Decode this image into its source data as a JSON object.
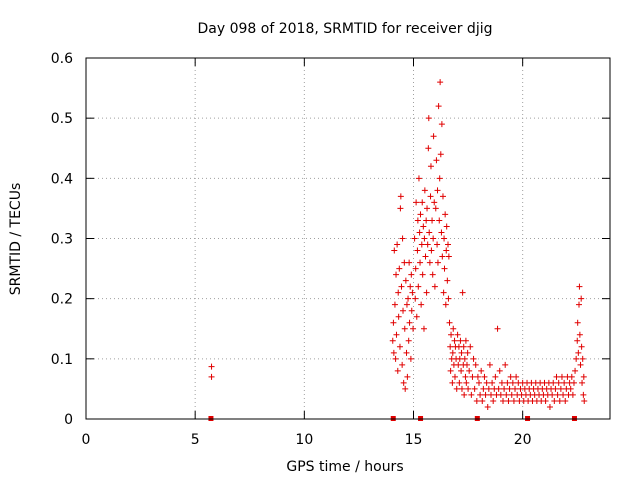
{
  "chart_data": {
    "type": "scatter",
    "title": "Day 098 of 2018, SRMTID for receiver djig",
    "xlabel": "GPS time / hours",
    "ylabel": "SRMTID / TECUs",
    "xlim": [
      0,
      24
    ],
    "ylim": [
      0,
      0.6
    ],
    "xticks": [
      0,
      5,
      10,
      15,
      20
    ],
    "xtick_labels": [
      "0",
      "5",
      "10",
      "15",
      "20"
    ],
    "yticks": [
      0,
      0.1,
      0.2,
      0.3,
      0.4,
      0.5,
      0.6
    ],
    "ytick_labels": [
      "0",
      "0.1",
      "0.2",
      "0.3",
      "0.4",
      "0.5",
      "0.6"
    ],
    "grid": true,
    "marker": "+",
    "color": "#e00000",
    "series": [
      {
        "name": "SRMTID",
        "points": [
          [
            5.75,
            0.087
          ],
          [
            5.75,
            0.07
          ],
          [
            14.05,
            0.13
          ],
          [
            14.08,
            0.16
          ],
          [
            14.1,
            0.11
          ],
          [
            14.12,
            0.28
          ],
          [
            14.15,
            0.19
          ],
          [
            14.18,
            0.1
          ],
          [
            14.2,
            0.24
          ],
          [
            14.22,
            0.14
          ],
          [
            14.25,
            0.29
          ],
          [
            14.28,
            0.08
          ],
          [
            14.3,
            0.21
          ],
          [
            14.32,
            0.17
          ],
          [
            14.35,
            0.25
          ],
          [
            14.38,
            0.12
          ],
          [
            14.4,
            0.35
          ],
          [
            14.42,
            0.37
          ],
          [
            14.45,
            0.22
          ],
          [
            14.48,
            0.09
          ],
          [
            14.5,
            0.3
          ],
          [
            14.52,
            0.18
          ],
          [
            14.55,
            0.06
          ],
          [
            14.58,
            0.26
          ],
          [
            14.6,
            0.15
          ],
          [
            14.62,
            0.05
          ],
          [
            14.65,
            0.23
          ],
          [
            14.68,
            0.11
          ],
          [
            14.7,
            0.19
          ],
          [
            14.72,
            0.07
          ],
          [
            14.75,
            0.2
          ],
          [
            14.78,
            0.13
          ],
          [
            14.8,
            0.26
          ],
          [
            14.82,
            0.16
          ],
          [
            14.85,
            0.22
          ],
          [
            14.88,
            0.1
          ],
          [
            14.9,
            0.24
          ],
          [
            14.92,
            0.18
          ],
          [
            14.95,
            0.21
          ],
          [
            14.98,
            0.15
          ],
          [
            15.05,
            0.3
          ],
          [
            15.08,
            0.2
          ],
          [
            15.1,
            0.25
          ],
          [
            15.12,
            0.36
          ],
          [
            15.15,
            0.17
          ],
          [
            15.18,
            0.28
          ],
          [
            15.2,
            0.33
          ],
          [
            15.22,
            0.22
          ],
          [
            15.25,
            0.4
          ],
          [
            15.28,
            0.31
          ],
          [
            15.3,
            0.26
          ],
          [
            15.32,
            0.34
          ],
          [
            15.35,
            0.19
          ],
          [
            15.38,
            0.29
          ],
          [
            15.4,
            0.36
          ],
          [
            15.42,
            0.24
          ],
          [
            15.45,
            0.32
          ],
          [
            15.48,
            0.15
          ],
          [
            15.5,
            0.3
          ],
          [
            15.52,
            0.38
          ],
          [
            15.55,
            0.27
          ],
          [
            15.58,
            0.33
          ],
          [
            15.6,
            0.21
          ],
          [
            15.62,
            0.35
          ],
          [
            15.65,
            0.29
          ],
          [
            15.68,
            0.45
          ],
          [
            15.7,
            0.5
          ],
          [
            15.72,
            0.31
          ],
          [
            15.75,
            0.26
          ],
          [
            15.78,
            0.37
          ],
          [
            15.8,
            0.42
          ],
          [
            15.82,
            0.28
          ],
          [
            15.85,
            0.33
          ],
          [
            15.88,
            0.24
          ],
          [
            15.9,
            0.3
          ],
          [
            15.92,
            0.47
          ],
          [
            15.95,
            0.36
          ],
          [
            15.98,
            0.22
          ],
          [
            16.02,
            0.35
          ],
          [
            16.05,
            0.43
          ],
          [
            16.08,
            0.29
          ],
          [
            16.1,
            0.38
          ],
          [
            16.12,
            0.26
          ],
          [
            16.15,
            0.52
          ],
          [
            16.18,
            0.33
          ],
          [
            16.2,
            0.4
          ],
          [
            16.22,
            0.56
          ],
          [
            16.25,
            0.44
          ],
          [
            16.28,
            0.31
          ],
          [
            16.3,
            0.49
          ],
          [
            16.32,
            0.27
          ],
          [
            16.35,
            0.37
          ],
          [
            16.38,
            0.21
          ],
          [
            16.4,
            0.3
          ],
          [
            16.42,
            0.25
          ],
          [
            16.45,
            0.34
          ],
          [
            16.48,
            0.19
          ],
          [
            16.5,
            0.28
          ],
          [
            16.52,
            0.32
          ],
          [
            16.55,
            0.23
          ],
          [
            16.58,
            0.29
          ],
          [
            16.6,
            0.2
          ],
          [
            16.62,
            0.27
          ],
          [
            16.65,
            0.16
          ],
          [
            16.68,
            0.12
          ],
          [
            16.7,
            0.08
          ],
          [
            16.72,
            0.14
          ],
          [
            16.75,
            0.1
          ],
          [
            16.78,
            0.06
          ],
          [
            16.8,
            0.11
          ],
          [
            16.82,
            0.15
          ],
          [
            16.85,
            0.09
          ],
          [
            16.88,
            0.13
          ],
          [
            16.9,
            0.07
          ],
          [
            16.92,
            0.12
          ],
          [
            16.95,
            0.1
          ],
          [
            16.98,
            0.05
          ],
          [
            17.02,
            0.14
          ],
          [
            17.05,
            0.09
          ],
          [
            17.08,
            0.12
          ],
          [
            17.1,
            0.06
          ],
          [
            17.12,
            0.1
          ],
          [
            17.15,
            0.13
          ],
          [
            17.18,
            0.08
          ],
          [
            17.2,
            0.11
          ],
          [
            17.22,
            0.05
          ],
          [
            17.25,
            0.21
          ],
          [
            17.28,
            0.09
          ],
          [
            17.3,
            0.12
          ],
          [
            17.32,
            0.04
          ],
          [
            17.35,
            0.1
          ],
          [
            17.38,
            0.07
          ],
          [
            17.4,
            0.13
          ],
          [
            17.42,
            0.06
          ],
          [
            17.45,
            0.09
          ],
          [
            17.48,
            0.11
          ],
          [
            17.5,
            0.05
          ],
          [
            17.55,
            0.08
          ],
          [
            17.6,
            0.12
          ],
          [
            17.65,
            0.04
          ],
          [
            17.7,
            0.07
          ],
          [
            17.75,
            0.1
          ],
          [
            17.8,
            0.05
          ],
          [
            17.85,
            0.09
          ],
          [
            17.9,
            0.03
          ],
          [
            17.95,
            0.07
          ],
          [
            18.0,
            0.06
          ],
          [
            18.05,
            0.04
          ],
          [
            18.1,
            0.08
          ],
          [
            18.15,
            0.03
          ],
          [
            18.2,
            0.05
          ],
          [
            18.25,
            0.07
          ],
          [
            18.3,
            0.04
          ],
          [
            18.35,
            0.06
          ],
          [
            18.4,
            0.02
          ],
          [
            18.45,
            0.05
          ],
          [
            18.5,
            0.09
          ],
          [
            18.55,
            0.04
          ],
          [
            18.6,
            0.06
          ],
          [
            18.65,
            0.03
          ],
          [
            18.7,
            0.05
          ],
          [
            18.75,
            0.07
          ],
          [
            18.8,
            0.04
          ],
          [
            18.85,
            0.15
          ],
          [
            18.9,
            0.05
          ],
          [
            18.95,
            0.08
          ],
          [
            19.0,
            0.04
          ],
          [
            19.05,
            0.06
          ],
          [
            19.1,
            0.03
          ],
          [
            19.15,
            0.05
          ],
          [
            19.2,
            0.09
          ],
          [
            19.25,
            0.04
          ],
          [
            19.3,
            0.06
          ],
          [
            19.35,
            0.03
          ],
          [
            19.4,
            0.05
          ],
          [
            19.45,
            0.07
          ],
          [
            19.5,
            0.04
          ],
          [
            19.55,
            0.06
          ],
          [
            19.6,
            0.03
          ],
          [
            19.65,
            0.05
          ],
          [
            19.7,
            0.07
          ],
          [
            19.75,
            0.04
          ],
          [
            19.8,
            0.06
          ],
          [
            19.85,
            0.03
          ],
          [
            19.9,
            0.05
          ],
          [
            19.95,
            0.04
          ],
          [
            20.0,
            0.06
          ],
          [
            20.05,
            0.03
          ],
          [
            20.1,
            0.05
          ],
          [
            20.15,
            0.04
          ],
          [
            20.2,
            0.06
          ],
          [
            20.25,
            0.03
          ],
          [
            20.3,
            0.05
          ],
          [
            20.35,
            0.04
          ],
          [
            20.4,
            0.06
          ],
          [
            20.45,
            0.03
          ],
          [
            20.5,
            0.05
          ],
          [
            20.55,
            0.04
          ],
          [
            20.6,
            0.06
          ],
          [
            20.65,
            0.03
          ],
          [
            20.7,
            0.05
          ],
          [
            20.75,
            0.04
          ],
          [
            20.8,
            0.06
          ],
          [
            20.85,
            0.03
          ],
          [
            20.9,
            0.05
          ],
          [
            20.95,
            0.04
          ],
          [
            21.0,
            0.06
          ],
          [
            21.05,
            0.03
          ],
          [
            21.1,
            0.05
          ],
          [
            21.15,
            0.04
          ],
          [
            21.2,
            0.06
          ],
          [
            21.25,
            0.02
          ],
          [
            21.3,
            0.05
          ],
          [
            21.35,
            0.04
          ],
          [
            21.4,
            0.06
          ],
          [
            21.45,
            0.03
          ],
          [
            21.5,
            0.05
          ],
          [
            21.55,
            0.07
          ],
          [
            21.6,
            0.04
          ],
          [
            21.65,
            0.06
          ],
          [
            21.7,
            0.03
          ],
          [
            21.75,
            0.05
          ],
          [
            21.8,
            0.07
          ],
          [
            21.85,
            0.04
          ],
          [
            21.9,
            0.06
          ],
          [
            21.95,
            0.03
          ],
          [
            22.0,
            0.05
          ],
          [
            22.05,
            0.07
          ],
          [
            22.1,
            0.04
          ],
          [
            22.15,
            0.06
          ],
          [
            22.2,
            0.05
          ],
          [
            22.25,
            0.07
          ],
          [
            22.3,
            0.04
          ],
          [
            22.35,
            0.06
          ],
          [
            22.4,
            0.08
          ],
          [
            22.45,
            0.1
          ],
          [
            22.5,
            0.13
          ],
          [
            22.52,
            0.16
          ],
          [
            22.55,
            0.11
          ],
          [
            22.58,
            0.19
          ],
          [
            22.6,
            0.22
          ],
          [
            22.62,
            0.14
          ],
          [
            22.65,
            0.09
          ],
          [
            22.68,
            0.2
          ],
          [
            22.7,
            0.12
          ],
          [
            22.72,
            0.06
          ],
          [
            22.75,
            0.1
          ],
          [
            22.78,
            0.04
          ],
          [
            22.8,
            0.07
          ],
          [
            22.82,
            0.03
          ]
        ]
      }
    ],
    "gap_markers_x": [
      5.7,
      14.05,
      15.3,
      17.9,
      20.2,
      22.35
    ]
  }
}
